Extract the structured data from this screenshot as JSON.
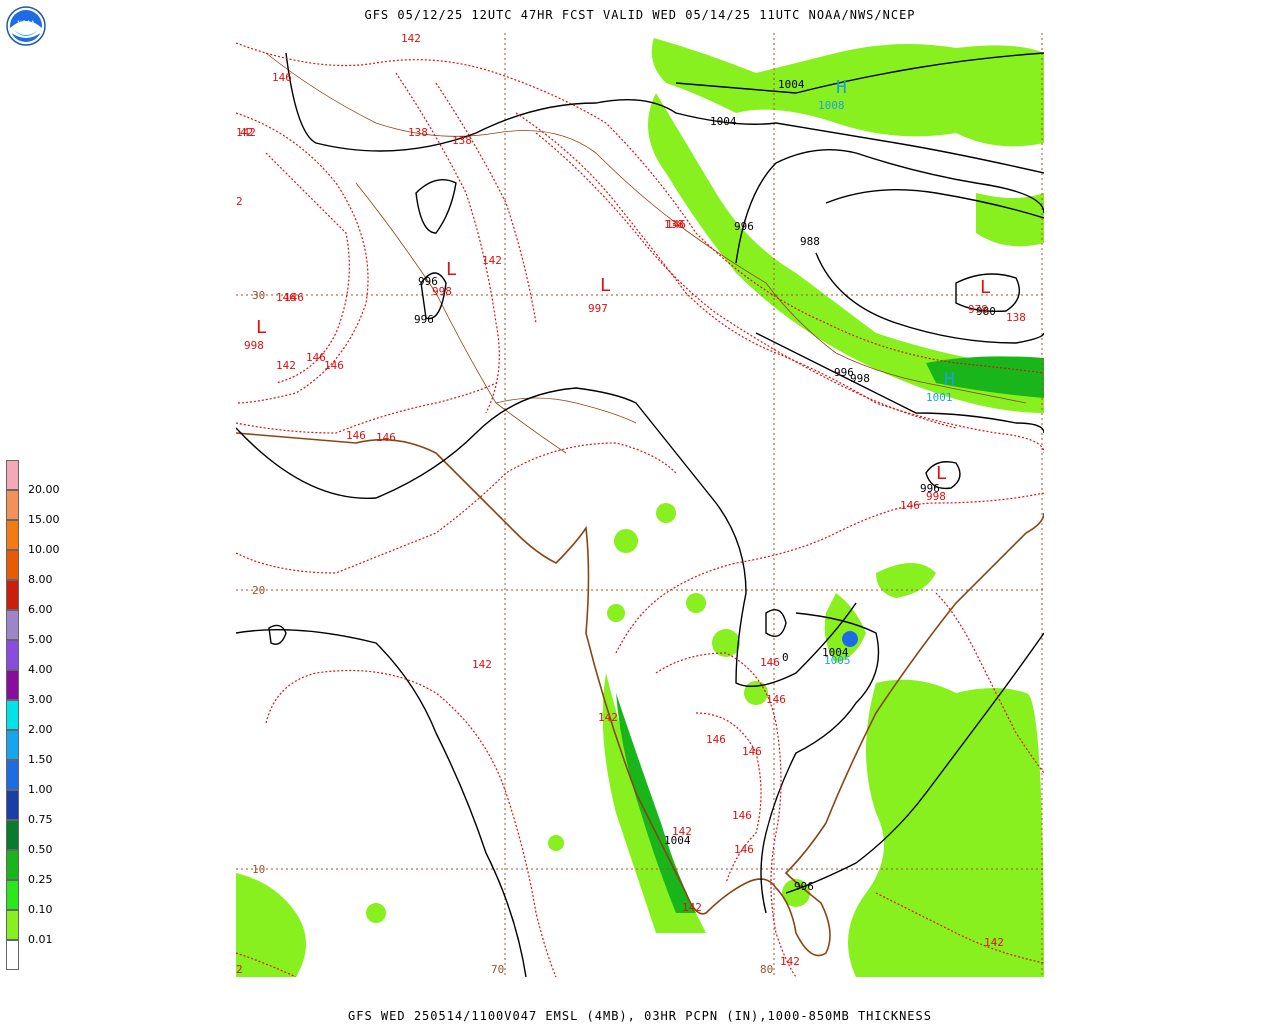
{
  "header": {
    "title": "GFS 05/12/25 12UTC 47HR FCST VALID WED 05/14/25 11UTC NOAA/NWS/NCEP",
    "footer": "GFS WED 250514/1100V047 EMSL (4MB), 03HR PCPN (IN),1000-850MB THICKNESS"
  },
  "logo": {
    "text": "NOAA",
    "icon": "noaa-logo-icon"
  },
  "legend": {
    "labels": [
      "20.00",
      "15.00",
      "10.00",
      "8.00",
      "6.00",
      "5.00",
      "4.00",
      "3.00",
      "2.00",
      "1.50",
      "1.00",
      "0.75",
      "0.50",
      "0.25",
      "0.10",
      "0.01"
    ],
    "colors": [
      "#f4a9b8",
      "#f4915a",
      "#f47a14",
      "#e85a04",
      "#cc1e0e",
      "#9a86c9",
      "#8a4be0",
      "#8a0c9e",
      "#00e3e8",
      "#16a6ef",
      "#1e6be6",
      "#1a3ea8",
      "#0a7a2c",
      "#18b61a",
      "#2ae81c",
      "#88f01e",
      "#ffffff"
    ]
  },
  "grid": {
    "lat_labels": [
      "30",
      "20",
      "10"
    ],
    "lon_labels": [
      "70",
      "80"
    ]
  },
  "map_labels": {
    "thickness": [
      "142",
      "146",
      "138",
      "138",
      "142",
      "142",
      "146",
      "146",
      "146",
      "142",
      "146",
      "146",
      "138",
      "142",
      "146",
      "142",
      "146",
      "146",
      "146",
      "146",
      "146",
      "146",
      "142",
      "142",
      "138",
      "146",
      "142",
      "142",
      "2",
      "42",
      "146",
      "2"
    ],
    "isobars": [
      "1004",
      "1004",
      "996",
      "988",
      "996",
      "996",
      "996",
      "998",
      "996",
      "980",
      "1004",
      "1004",
      "0",
      "996"
    ],
    "low_centers": [
      {
        "symbol": "L",
        "value": "998"
      },
      {
        "symbol": "L",
        "value": "997"
      },
      {
        "symbol": "L",
        "value": "998"
      },
      {
        "symbol": "L",
        "value": "978"
      },
      {
        "symbol": "L",
        "value": "998"
      }
    ],
    "high_centers": [
      {
        "symbol": "H",
        "value": "1008"
      },
      {
        "symbol": "H",
        "value": "1001"
      }
    ],
    "other_values": [
      "1005"
    ]
  },
  "colors": {
    "thickness": "#e01010",
    "isobar": "#000000",
    "coast": "#8b4513",
    "grid": "#a0522d",
    "high": "#1ea0e0",
    "low": "#e01010"
  }
}
